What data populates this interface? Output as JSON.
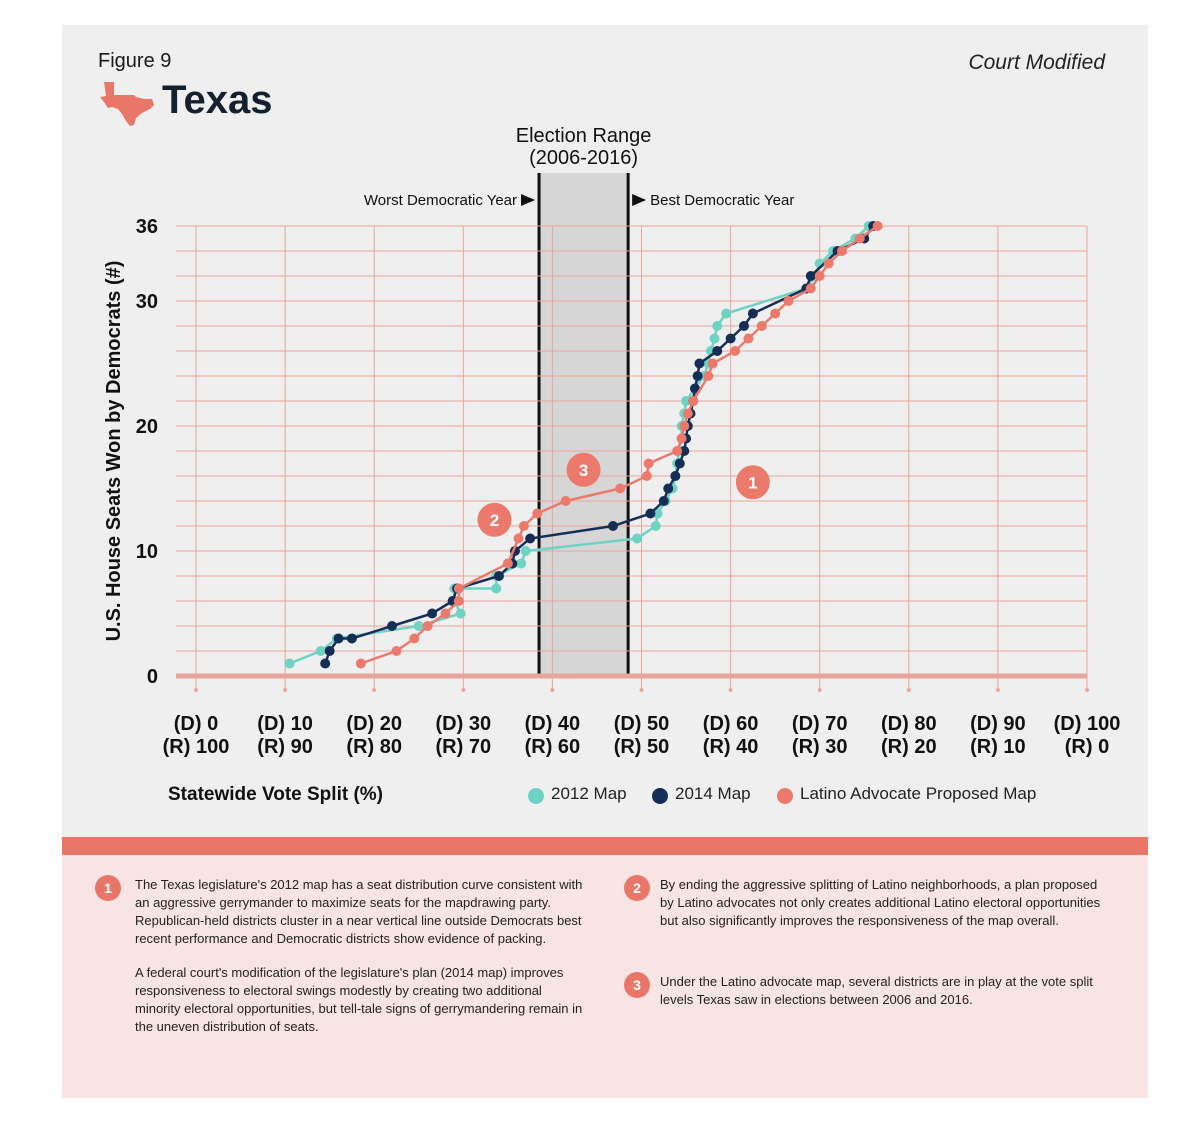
{
  "figure_label": "Figure 9",
  "state_name": "Texas",
  "state_icon": "texas-state-silhouette-icon",
  "variant_label": "Court Modified",
  "colors": {
    "map_2012": "#6fd3c4",
    "map_2014": "#142e55",
    "latino_map": "#ec7a6c",
    "panel_background": "#efefef",
    "grid": "#e9a59c",
    "election_band": "#d6d6d6",
    "notes_background": "#f8e4e2",
    "accent": "#e8776a"
  },
  "chart_data": {
    "type": "line",
    "title": "Texas",
    "xlabel": "Statewide Vote Split (%)",
    "ylabel": "U.S. House Seats Won by Democrats (#)",
    "xlim": [
      0,
      100
    ],
    "ylim": [
      0,
      36
    ],
    "grid": true,
    "legend_position": "bottom",
    "x_ticks": [
      {
        "d": "(D) 0",
        "r": "(R) 100"
      },
      {
        "d": "(D) 10",
        "r": "(R) 90"
      },
      {
        "d": "(D) 20",
        "r": "(R) 80"
      },
      {
        "d": "(D) 30",
        "r": "(R) 70"
      },
      {
        "d": "(D) 40",
        "r": "(R) 60"
      },
      {
        "d": "(D) 50",
        "r": "(R) 50"
      },
      {
        "d": "(D) 60",
        "r": "(R) 40"
      },
      {
        "d": "(D) 70",
        "r": "(R) 30"
      },
      {
        "d": "(D) 80",
        "r": "(R) 20"
      },
      {
        "d": "(D) 90",
        "r": "(R) 10"
      },
      {
        "d": "(D) 100",
        "r": "(R) 0"
      }
    ],
    "y_ticks": [
      "0",
      "10",
      "20",
      "30",
      "36"
    ],
    "y_tick_values": [
      0,
      10,
      20,
      30,
      36
    ],
    "election_range": {
      "label_line1": "Election Range",
      "label_line2": "(2006-2016)",
      "x_start": 38.5,
      "x_end": 48.5,
      "left_label": "Worst Democratic Year",
      "right_label": "Best Democratic Year"
    },
    "series": [
      {
        "name": "2012 Map",
        "color": "#6fd3c4",
        "points": [
          [
            10.5,
            1
          ],
          [
            14.0,
            2
          ],
          [
            15.8,
            3
          ],
          [
            25.0,
            4
          ],
          [
            29.7,
            5
          ],
          [
            29.0,
            6
          ],
          [
            29.0,
            7
          ],
          [
            33.7,
            7
          ],
          [
            33.7,
            8
          ],
          [
            36.5,
            9
          ],
          [
            37.0,
            10
          ],
          [
            49.5,
            11
          ],
          [
            51.6,
            12
          ],
          [
            51.8,
            13
          ],
          [
            52.7,
            14
          ],
          [
            53.5,
            15
          ],
          [
            53.8,
            16
          ],
          [
            54.0,
            17
          ],
          [
            54.2,
            18
          ],
          [
            54.5,
            19
          ],
          [
            54.5,
            20
          ],
          [
            54.8,
            21
          ],
          [
            55.0,
            22
          ],
          [
            56.0,
            23
          ],
          [
            57.0,
            24
          ],
          [
            57.5,
            25
          ],
          [
            57.8,
            26
          ],
          [
            58.2,
            27
          ],
          [
            58.5,
            28
          ],
          [
            59.5,
            29
          ],
          [
            68.5,
            31
          ],
          [
            69.5,
            32
          ],
          [
            70.0,
            33
          ],
          [
            71.5,
            34
          ],
          [
            74.0,
            35
          ],
          [
            75.5,
            36
          ]
        ]
      },
      {
        "name": "2014 Map",
        "color": "#142e55",
        "points": [
          [
            14.5,
            1
          ],
          [
            15.0,
            2
          ],
          [
            16.0,
            3
          ],
          [
            17.5,
            3
          ],
          [
            22.0,
            4
          ],
          [
            26.5,
            5
          ],
          [
            28.8,
            6
          ],
          [
            29.3,
            7
          ],
          [
            34.0,
            8
          ],
          [
            35.5,
            9
          ],
          [
            35.8,
            10
          ],
          [
            37.5,
            11
          ],
          [
            46.8,
            12
          ],
          [
            51.0,
            13
          ],
          [
            52.5,
            14
          ],
          [
            53.0,
            15
          ],
          [
            53.8,
            16
          ],
          [
            54.3,
            17
          ],
          [
            54.8,
            18
          ],
          [
            55.0,
            19
          ],
          [
            55.2,
            20
          ],
          [
            55.5,
            21
          ],
          [
            55.8,
            22
          ],
          [
            56.0,
            23
          ],
          [
            56.3,
            24
          ],
          [
            56.5,
            25
          ],
          [
            58.5,
            26
          ],
          [
            60.0,
            27
          ],
          [
            61.5,
            28
          ],
          [
            62.5,
            29
          ],
          [
            68.5,
            31
          ],
          [
            69.0,
            32
          ],
          [
            72.0,
            34
          ],
          [
            75.0,
            35
          ],
          [
            76.0,
            36
          ]
        ]
      },
      {
        "name": "Latino Advocate Proposed Map",
        "color": "#ec7a6c",
        "points": [
          [
            18.5,
            1
          ],
          [
            22.5,
            2
          ],
          [
            24.5,
            3
          ],
          [
            26.0,
            4
          ],
          [
            28.0,
            5
          ],
          [
            29.5,
            6
          ],
          [
            29.5,
            7
          ],
          [
            35.0,
            9
          ],
          [
            36.2,
            11
          ],
          [
            36.8,
            12
          ],
          [
            38.3,
            13
          ],
          [
            41.5,
            14
          ],
          [
            47.6,
            15
          ],
          [
            50.6,
            16
          ],
          [
            50.8,
            17
          ],
          [
            54.0,
            18
          ],
          [
            54.5,
            19
          ],
          [
            54.8,
            20
          ],
          [
            55.2,
            21
          ],
          [
            55.8,
            22
          ],
          [
            57.5,
            24
          ],
          [
            58.0,
            25
          ],
          [
            60.5,
            26
          ],
          [
            62.0,
            27
          ],
          [
            63.5,
            28
          ],
          [
            65.0,
            29
          ],
          [
            66.5,
            30
          ],
          [
            69.0,
            31
          ],
          [
            70.0,
            32
          ],
          [
            71.0,
            33
          ],
          [
            72.5,
            34
          ],
          [
            74.5,
            35
          ],
          [
            76.5,
            36
          ]
        ]
      }
    ],
    "callouts": [
      {
        "number": "1",
        "x": 62.5,
        "y": 15.5
      },
      {
        "number": "2",
        "x": 33.5,
        "y": 12.5
      },
      {
        "number": "3",
        "x": 43.5,
        "y": 16.5
      }
    ]
  },
  "notes": {
    "note1_badge": "1",
    "note1_p1": "The Texas legislature's 2012 map has a seat distribution curve consistent with an aggressive gerrymander to maximize seats for the mapdrawing party. Republican-held districts cluster in a near vertical line outside Democrats best recent performance and Democratic districts show evidence of packing.",
    "note1_p2": "A federal court's modification of the legislature's plan (2014 map) improves responsiveness to electoral swings modestly by creating two additional minority electoral opportunities, but tell-tale signs of gerrymandering remain in the uneven distribution of seats.",
    "note2_badge": "2",
    "note2_text": "By ending the aggressive splitting of Latino neighborhoods, a plan proposed by Latino advocates not only creates additional Latino electoral opportunities but also significantly improves the responsiveness of the map overall.",
    "note3_badge": "3",
    "note3_text": "Under the Latino advocate map, several districts are in play at the vote split levels Texas saw in elections between 2006 and 2016."
  }
}
